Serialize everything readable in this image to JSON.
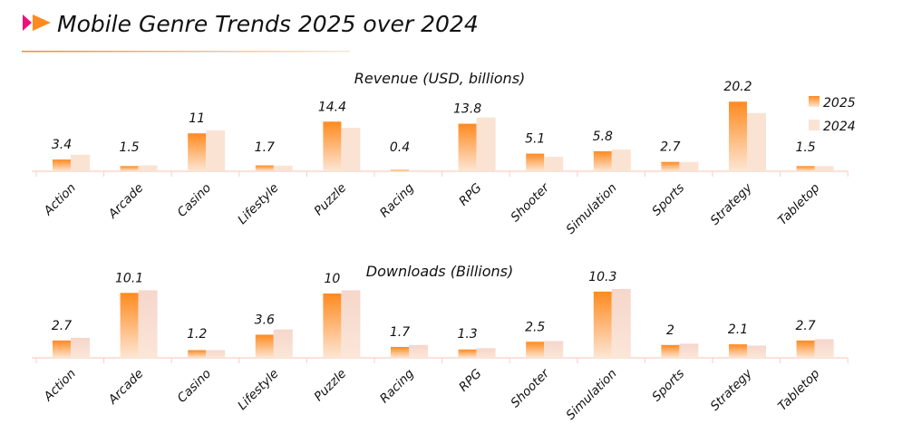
{
  "title": "Mobile Genre Trends 2025 over 2024",
  "colors": {
    "accent_pink": "#f0107a",
    "accent_orange": "#ff8a1f",
    "series_2025_top": "#ff8a1f",
    "series_2025_bottom": "#fde6d4",
    "series_2024": "#fbe3d4",
    "axis": "#f6cfc4"
  },
  "legend": {
    "placement": "top-right",
    "items": [
      "2025",
      "2024"
    ]
  },
  "chart_data": [
    {
      "type": "bar",
      "title": "Revenue (USD, billions)",
      "categories": [
        "Action",
        "Arcade",
        "Casino",
        "Lifestyle",
        "Puzzle",
        "Racing",
        "RPG",
        "Shooter",
        "Simulation",
        "Sports",
        "Strategy",
        "Tabletop"
      ],
      "series": [
        {
          "name": "2025",
          "values": [
            3.4,
            1.5,
            11,
            1.7,
            14.4,
            0.4,
            13.8,
            5.1,
            5.8,
            2.7,
            20.2,
            1.5
          ],
          "data_labels": true
        },
        {
          "name": "2024",
          "values": [
            4.8,
            1.7,
            11.9,
            1.6,
            12.6,
            0.3,
            15.6,
            4.2,
            6.3,
            2.7,
            16.9,
            1.5
          ],
          "data_labels": false
        }
      ],
      "grid": false
    },
    {
      "type": "bar",
      "title": "Downloads (Billions)",
      "categories": [
        "Action",
        "Arcade",
        "Casino",
        "Lifestyle",
        "Puzzle",
        "Racing",
        "RPG",
        "Shooter",
        "Simulation",
        "Sports",
        "Strategy",
        "Tabletop"
      ],
      "series": [
        {
          "name": "2025",
          "values": [
            2.7,
            10.1,
            1.2,
            3.6,
            10,
            1.7,
            1.3,
            2.5,
            10.3,
            2,
            2.1,
            2.7
          ],
          "data_labels": true
        },
        {
          "name": "2024",
          "values": [
            3.1,
            10.5,
            1.2,
            4.4,
            10.5,
            2.0,
            1.5,
            2.6,
            10.7,
            2.2,
            1.9,
            2.9
          ],
          "data_labels": false
        }
      ],
      "grid": false
    }
  ]
}
